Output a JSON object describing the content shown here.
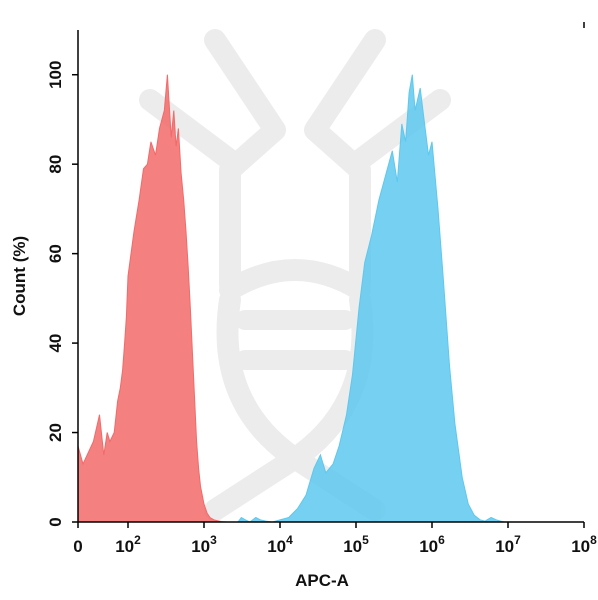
{
  "chart_data": {
    "type": "area",
    "xlabel": "APC-A",
    "ylabel": "Count (%)",
    "x_scale": "log",
    "xlim": [
      0,
      100000000
    ],
    "ylim": [
      0,
      110
    ],
    "grid": false,
    "x_tick_labels": [
      {
        "value": 0,
        "base": "0",
        "exp": ""
      },
      {
        "value": 100,
        "base": "10",
        "exp": "2"
      },
      {
        "value": 1000,
        "base": "10",
        "exp": "3"
      },
      {
        "value": 10000,
        "base": "10",
        "exp": "4"
      },
      {
        "value": 100000,
        "base": "10",
        "exp": "5"
      },
      {
        "value": 1000000,
        "base": "10",
        "exp": "6"
      },
      {
        "value": 10000000,
        "base": "10",
        "exp": "7"
      },
      {
        "value": 100000000,
        "base": "10",
        "exp": "8"
      }
    ],
    "y_ticks": [
      0,
      20,
      40,
      60,
      80,
      100
    ],
    "series": [
      {
        "color": "#f26a6a",
        "x": [
          0,
          5,
          10,
          15,
          20,
          25,
          30,
          40,
          50,
          60,
          70,
          80,
          90,
          100,
          120,
          140,
          160,
          180,
          200,
          230,
          260,
          300,
          330,
          370,
          400,
          430,
          460,
          500,
          540,
          580,
          620,
          660,
          700,
          750,
          800,
          850,
          900,
          1000,
          1100,
          1200,
          1350,
          1500,
          1700,
          2000
        ],
        "y": [
          17,
          13,
          18,
          24,
          15,
          20,
          18,
          20,
          27,
          30,
          34,
          40,
          46,
          55,
          65,
          72,
          79,
          80,
          85,
          82,
          88,
          92,
          100,
          86,
          92,
          84,
          88,
          78,
          72,
          65,
          57,
          48,
          39,
          28,
          18,
          12,
          8,
          4,
          2,
          1,
          0.5,
          0.3,
          0.1,
          0
        ]
      },
      {
        "color": "#5ec8ee",
        "x": [
          2800,
          3100,
          3500,
          4000,
          4800,
          5500,
          6500,
          8000,
          10000,
          13000,
          17000,
          22000,
          28000,
          34000,
          40000,
          50000,
          60000,
          75000,
          90000,
          110000,
          130000,
          160000,
          200000,
          250000,
          300000,
          350000,
          400000,
          450000,
          500000,
          550000,
          600000,
          700000,
          800000,
          900000,
          1000000,
          1200000,
          1400000,
          1700000,
          2000000,
          2500000,
          3000000,
          3600000,
          4300000,
          5000000,
          6000000,
          7000000,
          8000000,
          9000000
        ],
        "y": [
          0,
          1,
          0.5,
          0,
          1,
          0.5,
          0.2,
          0,
          0.5,
          1,
          3,
          6,
          12,
          15,
          11,
          13,
          17,
          24,
          33,
          48,
          58,
          64,
          72,
          78,
          83,
          76,
          89,
          85,
          96,
          100,
          92,
          97,
          89,
          82,
          85,
          70,
          55,
          35,
          22,
          10,
          4,
          1.5,
          0.5,
          0.2,
          1,
          0.5,
          0.2,
          0
        ]
      }
    ]
  }
}
